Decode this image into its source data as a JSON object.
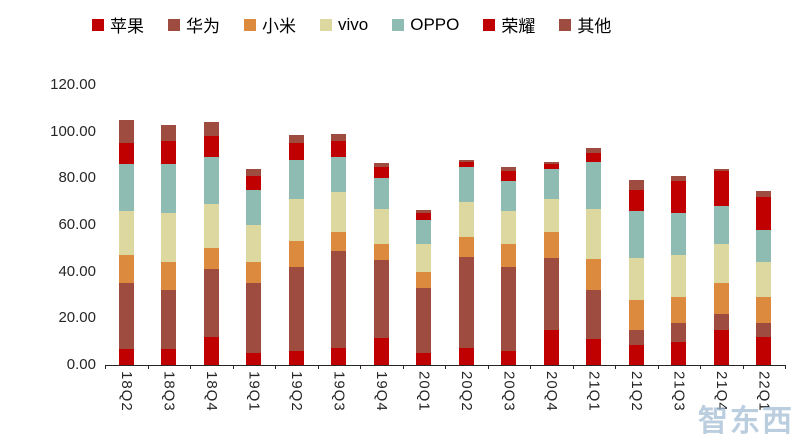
{
  "watermark": "智东西",
  "chart_data": {
    "type": "bar",
    "stacked": true,
    "title": "",
    "xlabel": "",
    "ylabel": "",
    "grid": false,
    "legend_position": "top",
    "ylim": [
      0,
      120
    ],
    "ytick_step": 20,
    "ytick_labels": [
      "0.00",
      "20.00",
      "40.00",
      "60.00",
      "80.00",
      "100.00",
      "120.00"
    ],
    "categories": [
      "18Q2",
      "18Q3",
      "18Q4",
      "19Q1",
      "19Q2",
      "19Q3",
      "19Q4",
      "20Q1",
      "20Q2",
      "20Q3",
      "20Q4",
      "21Q1",
      "21Q2",
      "21Q3",
      "21Q4",
      "22Q1"
    ],
    "series": [
      {
        "name": "苹果",
        "color": "#c00000",
        "values": [
          7,
          7,
          12,
          5,
          6,
          7.5,
          11.5,
          5,
          7.5,
          6,
          15,
          11,
          8.5,
          10,
          15,
          12
        ]
      },
      {
        "name": "华为",
        "color": "#9e4c40",
        "values": [
          28,
          25,
          29,
          30,
          36,
          41.5,
          33.5,
          28,
          39,
          36,
          31,
          21,
          6.5,
          8,
          7,
          6
        ]
      },
      {
        "name": "小米",
        "color": "#dc8b3e",
        "values": [
          12,
          12,
          9,
          9,
          11,
          8,
          7,
          7,
          8.5,
          10,
          11,
          13.5,
          13,
          11,
          13,
          11
        ]
      },
      {
        "name": "vivo",
        "color": "#ddd89f",
        "values": [
          19,
          21,
          19,
          16,
          18,
          17,
          15,
          12,
          15,
          14,
          14,
          21.5,
          18,
          18,
          17,
          15
        ]
      },
      {
        "name": "OPPO",
        "color": "#8ebcb2",
        "values": [
          20,
          21,
          20,
          15,
          17,
          15,
          13,
          10,
          15,
          13,
          13,
          20,
          20,
          18,
          16,
          14
        ]
      },
      {
        "name": "荣耀",
        "color": "#c00000",
        "values": [
          9,
          10,
          9,
          6,
          7,
          7,
          5,
          3,
          2,
          4,
          2,
          4,
          9,
          14,
          15,
          14
        ]
      },
      {
        "name": "其他",
        "color": "#9e4c40",
        "values": [
          10,
          7,
          6,
          3,
          3.5,
          3,
          1.5,
          1.6,
          1,
          2,
          1,
          2,
          4.5,
          2,
          1,
          2.5
        ]
      }
    ]
  }
}
